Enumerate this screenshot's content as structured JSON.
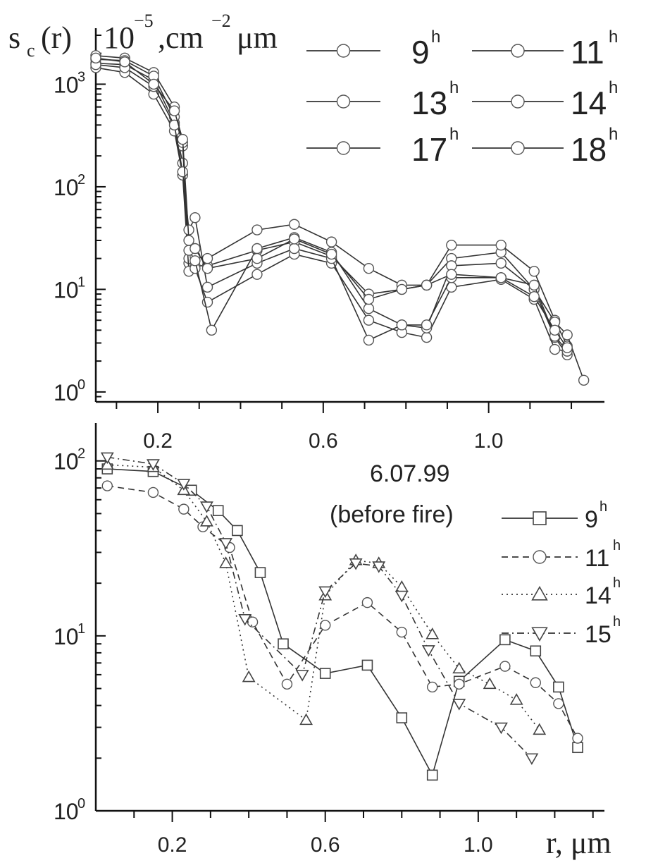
{
  "chart_data": [
    {
      "type": "line",
      "title": "",
      "ylabel_main": "s",
      "ylabel_sub": "c",
      "ylabel_arg": "(r)",
      "ylabel_units_base": "10",
      "ylabel_units_exp": "−5",
      "ylabel_units_mid": ",cm",
      "ylabel_units_exp2": "−2",
      "ylabel_units_tail": "μm",
      "xlabel": "",
      "yscale": "log",
      "xlim": [
        0.05,
        1.28
      ],
      "ylim": [
        0.8,
        3000
      ],
      "x_ticks": [
        0.2,
        0.6,
        1.0
      ],
      "x_tick_labels": [
        "0.2",
        "0.6",
        "1.0"
      ],
      "y_ticks": [
        1,
        10,
        100,
        1000
      ],
      "y_tick_labels": [
        {
          "base": "10",
          "exp": "0"
        },
        {
          "base": "10",
          "exp": "1"
        },
        {
          "base": "10",
          "exp": "2"
        },
        {
          "base": "10",
          "exp": "3"
        }
      ],
      "legend": {
        "placement": "top-right",
        "columns": 2,
        "entries": [
          {
            "base": "9",
            "sup": "h"
          },
          {
            "base": "11",
            "sup": "h"
          },
          {
            "base": "13",
            "sup": "h"
          },
          {
            "base": "14",
            "sup": "h"
          },
          {
            "base": "17",
            "sup": "h"
          },
          {
            "base": "18",
            "sup": "h"
          }
        ]
      },
      "series": [
        {
          "name": "9h",
          "marker": "circle",
          "dash": "solid",
          "x": [
            0.05,
            0.12,
            0.19,
            0.24,
            0.26,
            0.275,
            0.29,
            0.32,
            0.44,
            0.53,
            0.62,
            0.71,
            0.79,
            0.85,
            0.91,
            1.03,
            1.11,
            1.16,
            1.19
          ],
          "y": [
            1600,
            1550,
            1100,
            420,
            170,
            18,
            17,
            17,
            24,
            29,
            21,
            9,
            10,
            11,
            20,
            23,
            10,
            3.4,
            2.3
          ]
        },
        {
          "name": "11h",
          "marker": "circle",
          "dash": "solid",
          "x": [
            0.05,
            0.12,
            0.19,
            0.24,
            0.26,
            0.275,
            0.29,
            0.32,
            0.44,
            0.53,
            0.62,
            0.71,
            0.79,
            0.85,
            0.91,
            1.03,
            1.11,
            1.16,
            1.19
          ],
          "y": [
            1900,
            1800,
            1300,
            600,
            250,
            20,
            21,
            20,
            38,
            43,
            29,
            16,
            11,
            11,
            27,
            27,
            15,
            5,
            2.8
          ]
        },
        {
          "name": "13h",
          "marker": "circle",
          "dash": "solid",
          "x": [
            0.05,
            0.12,
            0.19,
            0.24,
            0.26,
            0.275,
            0.29,
            0.32,
            0.44,
            0.53,
            0.62,
            0.71,
            0.79,
            0.85,
            0.91,
            1.03,
            1.11,
            1.16,
            1.19
          ],
          "y": [
            1450,
            1300,
            800,
            350,
            130,
            15,
            16,
            7.5,
            14,
            22,
            18,
            5,
            3.8,
            3.4,
            10.5,
            12.5,
            8,
            2.6,
            2.5
          ]
        },
        {
          "name": "14h",
          "marker": "circle",
          "dash": "solid",
          "x": [
            0.05,
            0.12,
            0.19,
            0.24,
            0.26,
            0.275,
            0.29,
            0.33,
            0.44,
            0.53,
            0.62,
            0.71,
            0.79,
            0.85,
            0.91,
            1.03,
            1.11,
            1.16,
            1.19,
            1.23
          ],
          "y": [
            1750,
            1700,
            1200,
            480,
            270,
            24,
            19,
            4,
            25,
            32,
            23,
            6.5,
            4.5,
            4.2,
            17,
            18,
            10,
            4.8,
            3.6,
            1.3
          ]
        },
        {
          "name": "17h",
          "marker": "circle",
          "dash": "solid",
          "x": [
            0.05,
            0.12,
            0.19,
            0.24,
            0.26,
            0.275,
            0.29,
            0.32,
            0.44,
            0.53,
            0.62,
            0.71,
            0.79,
            0.85,
            0.91,
            1.03,
            1.11,
            1.16,
            1.19
          ],
          "y": [
            1550,
            1450,
            950,
            400,
            140,
            38,
            50,
            10.5,
            18,
            25,
            20,
            3.2,
            4.5,
            4.5,
            13,
            13,
            11,
            3.5,
            2.5
          ]
        },
        {
          "name": "18h",
          "marker": "circle",
          "dash": "solid",
          "x": [
            0.05,
            0.12,
            0.19,
            0.24,
            0.26,
            0.275,
            0.29,
            0.32,
            0.44,
            0.53,
            0.62,
            0.71,
            0.79,
            0.85,
            0.91,
            1.03,
            1.11,
            1.16,
            1.19
          ],
          "y": [
            1800,
            1650,
            1000,
            550,
            290,
            30,
            25,
            16,
            20,
            31,
            22,
            8,
            10,
            11,
            14,
            13,
            8.5,
            4,
            2.7
          ]
        }
      ]
    },
    {
      "type": "line",
      "title": "",
      "annotation_date": "6.07.99",
      "annotation_note": "(before fire)",
      "xlabel": "r, μm",
      "ylabel": "",
      "yscale": "log",
      "xlim": [
        0.0,
        1.33
      ],
      "ylim": [
        1,
        150
      ],
      "x_ticks": [
        0.2,
        0.6,
        1.0
      ],
      "x_tick_labels": [
        "0.2",
        "0.6",
        "1.0"
      ],
      "y_ticks": [
        1,
        10,
        100
      ],
      "y_tick_labels": [
        {
          "base": "10",
          "exp": "0"
        },
        {
          "base": "10",
          "exp": "1"
        },
        {
          "base": "10",
          "exp": "2"
        }
      ],
      "legend": {
        "placement": "right",
        "entries": [
          {
            "base": "9",
            "sup": "h"
          },
          {
            "base": "11",
            "sup": "h"
          },
          {
            "base": "14",
            "sup": "h"
          },
          {
            "base": "15",
            "sup": "h"
          }
        ]
      },
      "series": [
        {
          "name": "9h",
          "marker": "square",
          "dash": "solid",
          "x": [
            0.03,
            0.15,
            0.25,
            0.32,
            0.37,
            0.43,
            0.49,
            0.6,
            0.71,
            0.8,
            0.88,
            0.95,
            1.07,
            1.15,
            1.21,
            1.26
          ],
          "y": [
            90,
            87,
            68,
            52,
            40,
            23,
            9,
            6.1,
            6.8,
            3.4,
            1.6,
            5.5,
            9.5,
            8.2,
            5.1,
            2.3
          ]
        },
        {
          "name": "11h",
          "marker": "circle",
          "dash": "dashed",
          "x": [
            0.03,
            0.15,
            0.23,
            0.28,
            0.35,
            0.41,
            0.5,
            0.6,
            0.71,
            0.8,
            0.88,
            0.95,
            1.07,
            1.15,
            1.21,
            1.26
          ],
          "y": [
            72,
            66,
            53,
            42,
            32,
            12,
            5.3,
            11.5,
            15.5,
            10.5,
            5.1,
            5.3,
            6.7,
            5.4,
            4.1,
            2.6
          ]
        },
        {
          "name": "14h",
          "marker": "triangle-up",
          "dash": "dotted",
          "x": [
            0.03,
            0.15,
            0.23,
            0.29,
            0.34,
            0.4,
            0.55,
            0.6,
            0.68,
            0.74,
            0.8,
            0.88,
            0.95,
            1.03,
            1.1,
            1.16
          ],
          "y": [
            95,
            92,
            68,
            45,
            26,
            5.8,
            3.3,
            17,
            27,
            26,
            19,
            10.2,
            6.5,
            5.3,
            4.3,
            2.9
          ]
        },
        {
          "name": "15h",
          "marker": "triangle-down",
          "dash": "dashdot",
          "x": [
            0.03,
            0.15,
            0.23,
            0.29,
            0.34,
            0.39,
            0.54,
            0.6,
            0.68,
            0.74,
            0.8,
            0.87,
            0.95,
            1.06,
            1.14
          ],
          "y": [
            105,
            96,
            74,
            55,
            34,
            12.5,
            6,
            18,
            26,
            25,
            17,
            8.3,
            4.1,
            3,
            2
          ]
        }
      ]
    }
  ]
}
